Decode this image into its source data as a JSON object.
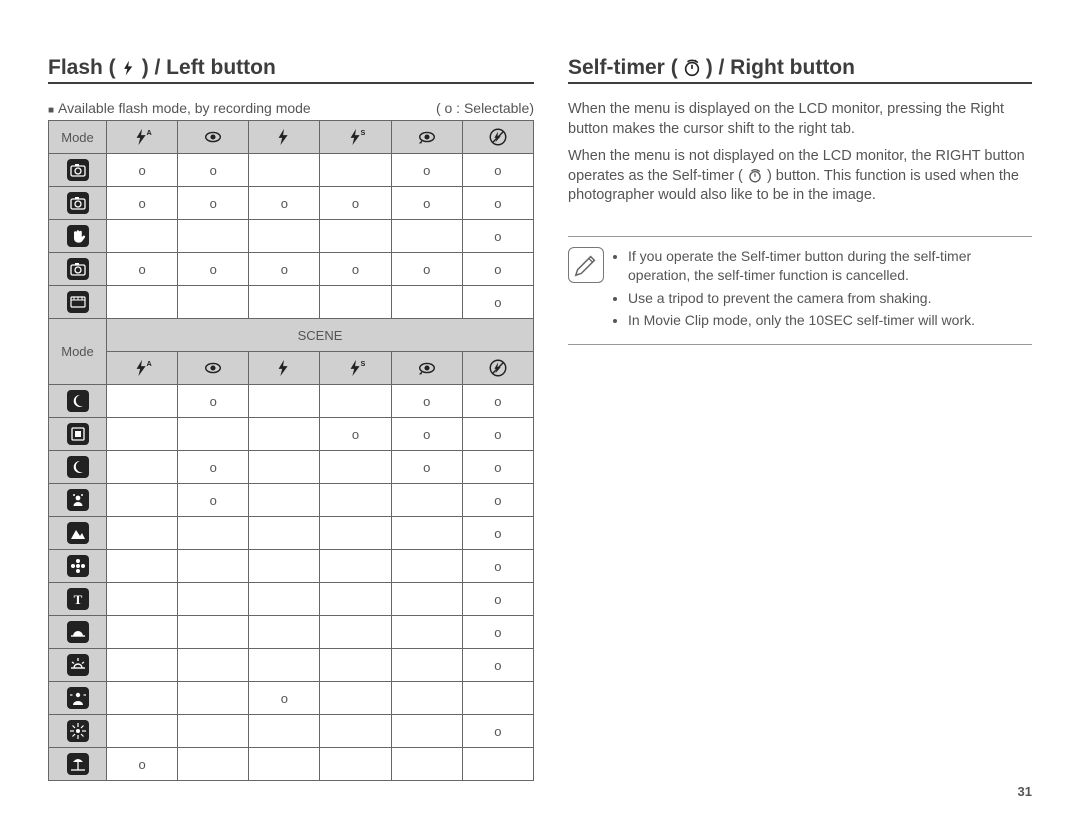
{
  "page_number": "31",
  "left": {
    "heading_pre": "Flash (",
    "heading_post": ") / Left button",
    "caption": "Available flash mode, by recording mode",
    "legend": "(  o : Selectable)",
    "table": {
      "mode_label": "Mode",
      "scene_label": "SCENE",
      "col_icons": [
        "flash-auto",
        "redeye",
        "flash-fill",
        "flash-slow",
        "redeye-fix",
        "flash-off"
      ],
      "top_rows": [
        {
          "icon": "camera-auto",
          "cells": [
            "o",
            "o",
            "",
            "",
            "o",
            "o"
          ]
        },
        {
          "icon": "camera-p",
          "cells": [
            "o",
            "o",
            "o",
            "o",
            "o",
            "o"
          ]
        },
        {
          "icon": "hand",
          "cells": [
            "",
            "",
            "",
            "",
            "",
            "o"
          ]
        },
        {
          "icon": "camera-night",
          "cells": [
            "o",
            "o",
            "o",
            "o",
            "o",
            "o"
          ]
        },
        {
          "icon": "movie",
          "cells": [
            "",
            "",
            "",
            "",
            "",
            "o"
          ]
        }
      ],
      "scene_rows": [
        {
          "icon": "scene-night",
          "cells": [
            "",
            "o",
            "",
            "",
            "o",
            "o"
          ]
        },
        {
          "icon": "scene-portrait",
          "cells": [
            "",
            "",
            "",
            "o",
            "o",
            "o"
          ]
        },
        {
          "icon": "scene-children",
          "cells": [
            "",
            "o",
            "",
            "",
            "o",
            "o"
          ]
        },
        {
          "icon": "scene-landscape",
          "cells": [
            "",
            "o",
            "",
            "",
            "",
            "o"
          ]
        },
        {
          "icon": "scene-closeup",
          "cells": [
            "",
            "",
            "",
            "",
            "",
            "o"
          ]
        },
        {
          "icon": "scene-flower",
          "cells": [
            "",
            "",
            "",
            "",
            "",
            "o"
          ]
        },
        {
          "icon": "scene-text",
          "cells": [
            "",
            "",
            "",
            "",
            "",
            "o"
          ]
        },
        {
          "icon": "scene-sunset",
          "cells": [
            "",
            "",
            "",
            "",
            "",
            "o"
          ]
        },
        {
          "icon": "scene-dawn",
          "cells": [
            "",
            "",
            "",
            "",
            "",
            "o"
          ]
        },
        {
          "icon": "scene-backlight",
          "cells": [
            "",
            "",
            "o",
            "",
            "",
            ""
          ]
        },
        {
          "icon": "scene-firework",
          "cells": [
            "",
            "",
            "",
            "",
            "",
            "o"
          ]
        },
        {
          "icon": "scene-beach",
          "cells": [
            "o",
            "",
            "",
            "",
            "",
            ""
          ]
        }
      ]
    }
  },
  "right": {
    "heading_pre": "Self-timer (",
    "heading_post": ") / Right button",
    "para1": "When the menu is displayed on the LCD monitor, pressing the Right button makes the cursor shift to the right tab.",
    "para2_a": "When the menu is not displayed on the LCD monitor, the RIGHT button operates as the Self-timer (",
    "para2_b": ") button. This function is used when the photographer would also like to be in the image.",
    "notes": [
      "If you operate the Self-timer button during the self-timer operation, the self-timer function is cancelled.",
      "Use a tripod to prevent the camera from shaking.",
      "In Movie Clip mode, only the 10SEC self-timer will work."
    ]
  }
}
